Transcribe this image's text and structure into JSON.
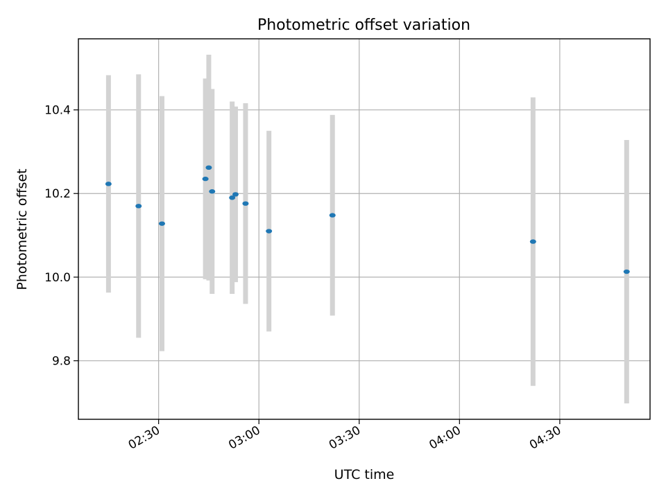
{
  "chart_data": {
    "type": "scatter",
    "title": "Photometric offset variation",
    "xlabel": "UTC time",
    "ylabel": "Photometric offset",
    "x_ticks": [
      "02:30",
      "03:00",
      "03:30",
      "04:00",
      "04:30"
    ],
    "y_ticks": [
      "9.8",
      "10.0",
      "10.2",
      "10.4"
    ],
    "xlim": [
      "02:06",
      "04:57"
    ],
    "ylim": [
      9.66,
      10.57
    ],
    "grid": true,
    "colors": {
      "point": "#1f77b4",
      "errorbar": "#d3d3d3",
      "grid": "#b0b0b0"
    },
    "points": [
      {
        "x": "02:15",
        "y": 10.223,
        "yerr": 0.26
      },
      {
        "x": "02:24",
        "y": 10.17,
        "yerr": 0.315
      },
      {
        "x": "02:31",
        "y": 10.128,
        "yerr": 0.305
      },
      {
        "x": "02:44",
        "y": 10.235,
        "yerr": 0.24
      },
      {
        "x": "02:45",
        "y": 10.262,
        "yerr": 0.27
      },
      {
        "x": "02:46",
        "y": 10.205,
        "yerr": 0.245
      },
      {
        "x": "02:52",
        "y": 10.19,
        "yerr": 0.23
      },
      {
        "x": "02:53",
        "y": 10.198,
        "yerr": 0.21
      },
      {
        "x": "02:56",
        "y": 10.176,
        "yerr": 0.24
      },
      {
        "x": "03:03",
        "y": 10.11,
        "yerr": 0.24
      },
      {
        "x": "03:22",
        "y": 10.148,
        "yerr": 0.24
      },
      {
        "x": "04:22",
        "y": 10.085,
        "yerr": 0.345
      },
      {
        "x": "04:50",
        "y": 10.013,
        "yerr": 0.315
      }
    ]
  }
}
